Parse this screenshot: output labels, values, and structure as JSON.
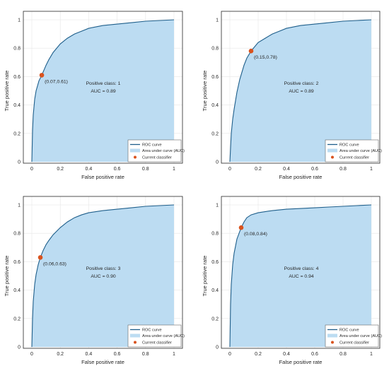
{
  "colors": {
    "curve": "#1f5f8b",
    "area": "#bcdcf2",
    "point": "#d9531e",
    "grid": "#e6e6e6",
    "axis": "#262626"
  },
  "legend": {
    "roc": "ROC curve",
    "auc_area": "Area under curve (AUC)",
    "current": "Current classifier"
  },
  "chart_data": [
    {
      "type": "area",
      "xlabel": "False positive rate",
      "ylabel": "True positive rate",
      "xlim": [
        0,
        1
      ],
      "ylim": [
        0,
        1
      ],
      "xticks": [
        "0",
        "0.2",
        "0.4",
        "0.6",
        "0.8",
        "1"
      ],
      "yticks": [
        "0",
        "0.2",
        "0.4",
        "0.6",
        "0.8",
        "1"
      ],
      "grid": true,
      "legend_position": "bottom-right",
      "series": [
        {
          "x": [
            0,
            0.005,
            0.01,
            0.02,
            0.03,
            0.05,
            0.07,
            0.1,
            0.12,
            0.15,
            0.2,
            0.25,
            0.3,
            0.35,
            0.4,
            0.5,
            0.6,
            0.7,
            0.8,
            0.9,
            1
          ],
          "y": [
            0,
            0.22,
            0.33,
            0.44,
            0.5,
            0.57,
            0.61,
            0.68,
            0.72,
            0.77,
            0.83,
            0.87,
            0.9,
            0.92,
            0.94,
            0.96,
            0.97,
            0.98,
            0.99,
            0.995,
            1
          ]
        }
      ],
      "point": {
        "x": 0.07,
        "y": 0.61,
        "label": "(0.07,0.61)"
      },
      "annotation": {
        "class_line": "Positive class: 1",
        "auc_line": "AUC = 0.89"
      }
    },
    {
      "type": "area",
      "xlabel": "False positive rate",
      "ylabel": "True positive rate",
      "xlim": [
        0,
        1
      ],
      "ylim": [
        0,
        1
      ],
      "xticks": [
        "0",
        "0.2",
        "0.4",
        "0.6",
        "0.8",
        "1"
      ],
      "yticks": [
        "0",
        "0.2",
        "0.4",
        "0.6",
        "0.8",
        "1"
      ],
      "grid": true,
      "legend_position": "bottom-right",
      "series": [
        {
          "x": [
            0,
            0.005,
            0.01,
            0.02,
            0.03,
            0.05,
            0.07,
            0.1,
            0.12,
            0.15,
            0.2,
            0.25,
            0.3,
            0.35,
            0.4,
            0.5,
            0.6,
            0.7,
            0.8,
            0.9,
            1
          ],
          "y": [
            0,
            0.1,
            0.2,
            0.3,
            0.37,
            0.49,
            0.58,
            0.68,
            0.73,
            0.78,
            0.84,
            0.87,
            0.9,
            0.92,
            0.94,
            0.96,
            0.97,
            0.98,
            0.99,
            0.995,
            1
          ]
        }
      ],
      "point": {
        "x": 0.15,
        "y": 0.78,
        "label": "(0.15,0.78)"
      },
      "annotation": {
        "class_line": "Positive class: 2",
        "auc_line": "AUC = 0.89"
      }
    },
    {
      "type": "area",
      "xlabel": "False positive rate",
      "ylabel": "True positive rate",
      "xlim": [
        0,
        1
      ],
      "ylim": [
        0,
        1
      ],
      "xticks": [
        "0",
        "0.2",
        "0.4",
        "0.6",
        "0.8",
        "1"
      ],
      "yticks": [
        "0",
        "0.2",
        "0.4",
        "0.6",
        "0.8",
        "1"
      ],
      "grid": true,
      "legend_position": "bottom-right",
      "series": [
        {
          "x": [
            0,
            0.005,
            0.01,
            0.02,
            0.03,
            0.045,
            0.06,
            0.08,
            0.1,
            0.12,
            0.15,
            0.2,
            0.25,
            0.3,
            0.35,
            0.4,
            0.5,
            0.6,
            0.7,
            0.8,
            0.9,
            1
          ],
          "y": [
            0,
            0.2,
            0.32,
            0.44,
            0.51,
            0.58,
            0.63,
            0.68,
            0.72,
            0.75,
            0.79,
            0.84,
            0.88,
            0.91,
            0.93,
            0.945,
            0.96,
            0.97,
            0.98,
            0.99,
            0.995,
            1
          ]
        }
      ],
      "point": {
        "x": 0.06,
        "y": 0.63,
        "label": "(0.06,0.63)"
      },
      "annotation": {
        "class_line": "Positive class: 3",
        "auc_line": "AUC = 0.90"
      }
    },
    {
      "type": "area",
      "xlabel": "False positive rate",
      "ylabel": "True positive rate",
      "xlim": [
        0,
        1
      ],
      "ylim": [
        0,
        1
      ],
      "xticks": [
        "0",
        "0.2",
        "0.4",
        "0.6",
        "0.8",
        "1"
      ],
      "yticks": [
        "0",
        "0.2",
        "0.4",
        "0.6",
        "0.8",
        "1"
      ],
      "grid": true,
      "legend_position": "bottom-right",
      "series": [
        {
          "x": [
            0,
            0.005,
            0.01,
            0.02,
            0.03,
            0.05,
            0.08,
            0.1,
            0.12,
            0.15,
            0.2,
            0.3,
            0.4,
            0.5,
            0.6,
            0.7,
            0.8,
            0.9,
            1
          ],
          "y": [
            0,
            0.3,
            0.44,
            0.58,
            0.66,
            0.76,
            0.84,
            0.88,
            0.91,
            0.93,
            0.945,
            0.96,
            0.97,
            0.975,
            0.98,
            0.985,
            0.99,
            0.995,
            1
          ]
        }
      ],
      "point": {
        "x": 0.08,
        "y": 0.84,
        "label": "(0.08,0.84)"
      },
      "annotation": {
        "class_line": "Positive class: 4",
        "auc_line": "AUC = 0.94"
      }
    }
  ]
}
